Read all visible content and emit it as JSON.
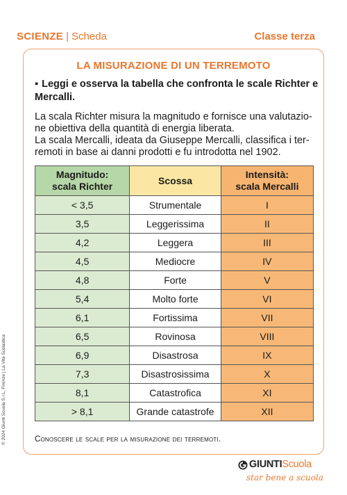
{
  "header": {
    "subject": "SCIENZE",
    "separator": "|",
    "doc_type": "Scheda",
    "grade": "Classe terza"
  },
  "title": "LA MISURAZIONE DI UN TERREMOTO",
  "instruction": {
    "bullet": "▪",
    "text": "Leggi e osserva la tabella che confronta le scale Richter e Mercalli."
  },
  "paragraph": {
    "line1": "La scala Richter misura la magnitudo e fornisce una valutazio-",
    "line2": "ne obiettiva della quantità di energia liberata.",
    "line3": "La scala Mercalli, ideata da Giuseppe Mercalli, classifica i ter-",
    "line4": "remoti in base ai danni prodotti e fu introdotta nel 1902."
  },
  "table": {
    "headers": {
      "magnitude_line1": "Magnitudo:",
      "magnitude_line2": "scala Richter",
      "shock": "Scossa",
      "intensity_line1": "Intensità:",
      "intensity_line2": "scala Mercalli"
    },
    "rows": [
      {
        "magnitude": "< 3,5",
        "shock": "Strumentale",
        "intensity": "I"
      },
      {
        "magnitude": "3,5",
        "shock": "Leggerissima",
        "intensity": "II"
      },
      {
        "magnitude": "4,2",
        "shock": "Leggera",
        "intensity": "III"
      },
      {
        "magnitude": "4,5",
        "shock": "Mediocre",
        "intensity": "IV"
      },
      {
        "magnitude": "4,8",
        "shock": "Forte",
        "intensity": "V"
      },
      {
        "magnitude": "5,4",
        "shock": "Molto forte",
        "intensity": "VI"
      },
      {
        "magnitude": "6,1",
        "shock": "Fortissima",
        "intensity": "VII"
      },
      {
        "magnitude": "6,5",
        "shock": "Rovinosa",
        "intensity": "VIII"
      },
      {
        "magnitude": "6,9",
        "shock": "Disastrosa",
        "intensity": "IX"
      },
      {
        "magnitude": "7,3",
        "shock": "Disastrosissima",
        "intensity": "X"
      },
      {
        "magnitude": "8,1",
        "shock": "Catastrofica",
        "intensity": "XI"
      },
      {
        "magnitude": "> 8,1",
        "shock": "Grande catastrofe",
        "intensity": "XII"
      }
    ]
  },
  "footer_note": "Conoscere le scale per la misurazione dei terremoti.",
  "copyright": "© 2024 Giunti Scuola S.r.L, Firenze | La Vita Scolastica",
  "logo": {
    "name_part1": "GIUNTI",
    "name_part2": "Scuola",
    "tagline": "star bene a scuola"
  },
  "colors": {
    "accent_orange": "#e8762d",
    "richter_header": "#b6d7a8",
    "richter_cells": "#dbebd1",
    "shock_header": "#fbe7a3",
    "mercalli": "#f6b470"
  }
}
